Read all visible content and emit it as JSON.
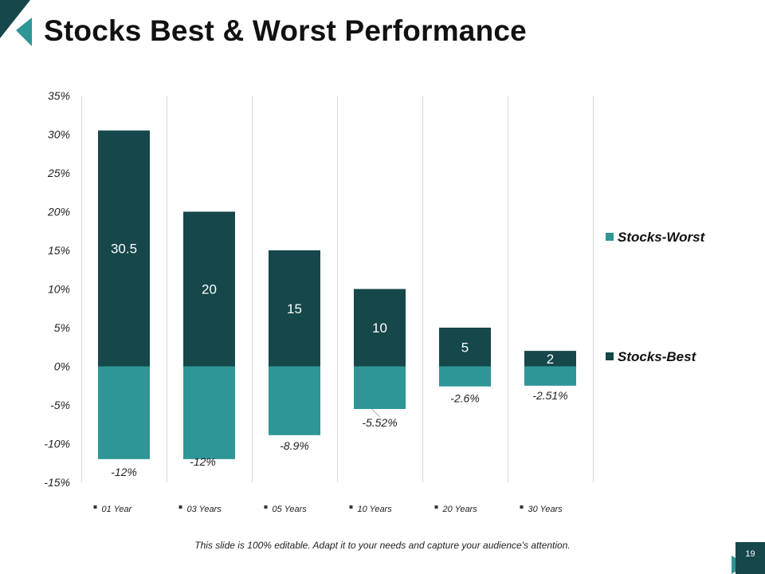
{
  "slide": {
    "title": "Stocks Best & Worst Performance",
    "footer": "This slide is 100% editable. Adapt it to your needs and capture your audience's attention.",
    "page_number": "19"
  },
  "colors": {
    "best": "#16474a",
    "worst": "#2e9696",
    "grid": "#d9d9d9",
    "text": "#222222",
    "accent_dark": "#16474a",
    "accent_light": "#2e9696"
  },
  "chart_data": {
    "type": "bar",
    "stacked": true,
    "categories": [
      "01 Year",
      "03 Years",
      "05 Years",
      "10 Years",
      "20 Years",
      "30 Years"
    ],
    "series": [
      {
        "name": "Stocks-Worst",
        "values": [
          -12,
          -12,
          -8.9,
          -5.52,
          -2.6,
          -2.51
        ],
        "labels": [
          "-12%",
          "-12%",
          "-8.9%",
          "-5.52%",
          "-2.6%",
          "-2.51%"
        ]
      },
      {
        "name": "Stocks-Best",
        "values": [
          30.5,
          20,
          15,
          10,
          5,
          2
        ],
        "labels": [
          "30.5",
          "20",
          "15",
          "10",
          "5",
          "2"
        ]
      }
    ],
    "ylim": [
      -15,
      35
    ],
    "yticks": [
      35,
      30,
      25,
      20,
      15,
      10,
      5,
      0,
      -5,
      -10,
      -15
    ],
    "ytick_labels": [
      "35%",
      "30%",
      "25%",
      "20%",
      "15%",
      "10%",
      "5%",
      "0%",
      "-5%",
      "-10%",
      "-15%"
    ],
    "legend": [
      "Stocks-Worst",
      "Stocks-Best"
    ],
    "legend_position": "right",
    "grid": "vertical-category-separators",
    "title": "",
    "xlabel": "",
    "ylabel": ""
  }
}
